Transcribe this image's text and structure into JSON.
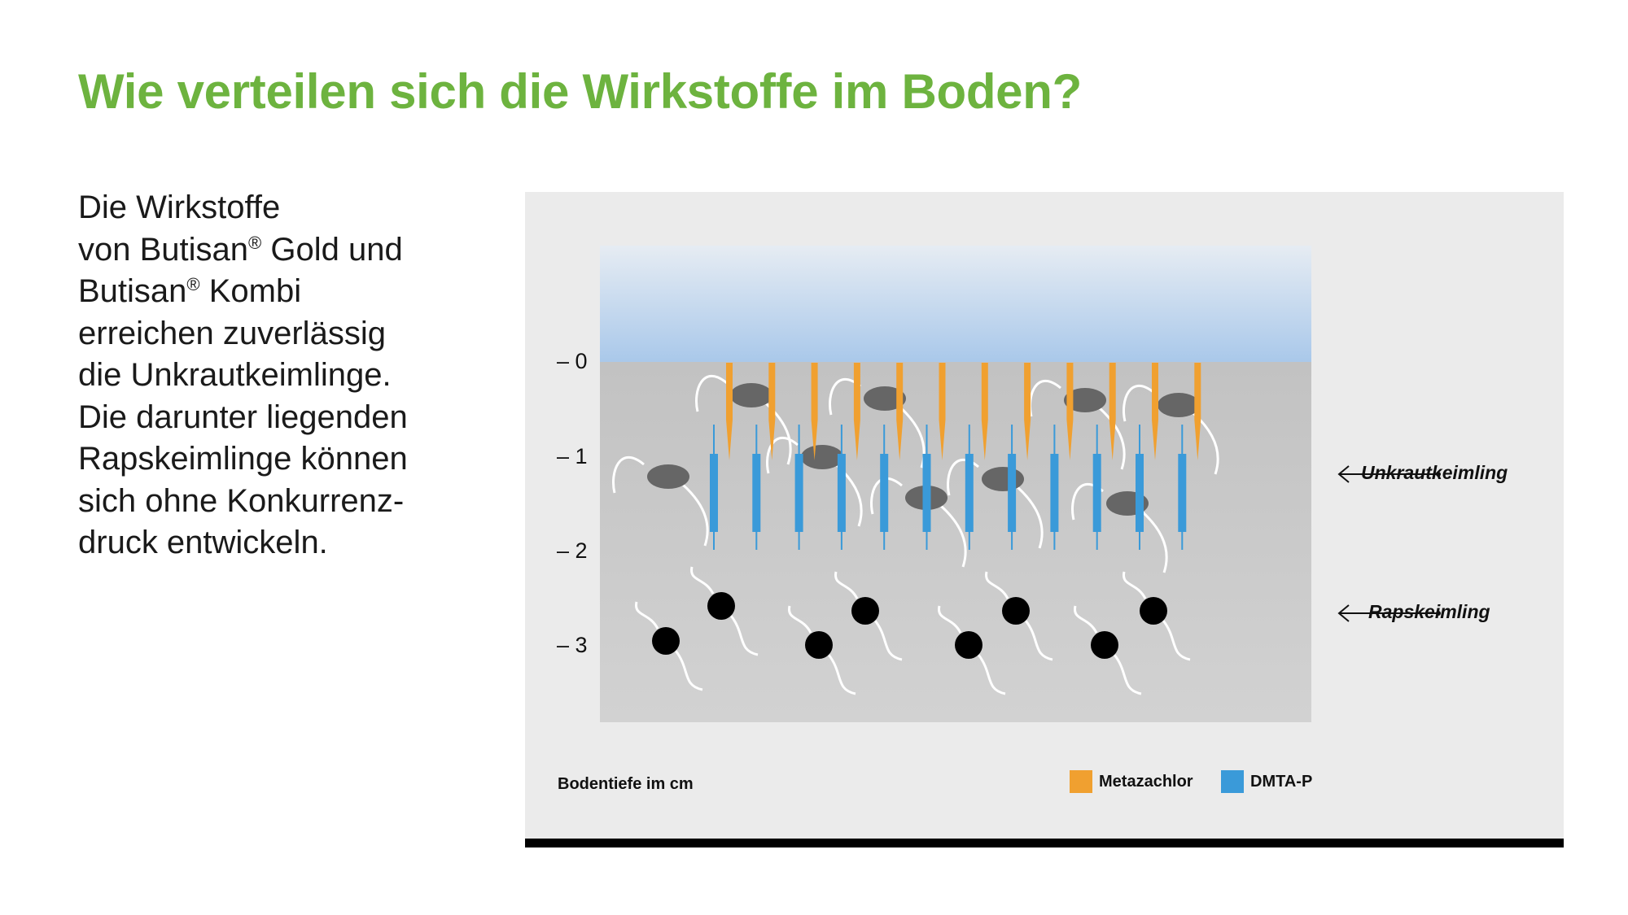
{
  "title": "Wie verteilen sich die Wirkstoffe im Boden?",
  "body": {
    "line1": "Die Wirkstoffe",
    "line2_a": "von Butisan",
    "line2_b": " Gold und",
    "line3_a": "Butisan",
    "line3_b": " Kombi",
    "line4": "erreichen zuverlässig",
    "line5": "die Unkrautkeimlinge.",
    "line6": "Die darunter liegenden",
    "line7": "Rapskeimlinge können",
    "line8": "sich ohne Konkurrenz-",
    "line9": "druck entwickeln.",
    "registered": "®"
  },
  "figure": {
    "depth_ticks": [
      "– 0",
      "– 1",
      "– 2",
      "– 3"
    ],
    "depth_caption": "Bodentiefe im cm",
    "labels": {
      "weed": "Unkrautkeimling",
      "rape": "Rapskeimling"
    },
    "legend": [
      {
        "label": "Metazachlor",
        "color": "#f0a030"
      },
      {
        "label": "DMTA-P",
        "color": "#3a9ad9"
      }
    ],
    "colors": {
      "sky_top": "#e6ecf3",
      "sky_bottom": "#a9c8ea",
      "soil": "#c6c6c6",
      "weed_seed": "#666666",
      "rape_seed": "#000000",
      "root": "#ffffff"
    }
  }
}
